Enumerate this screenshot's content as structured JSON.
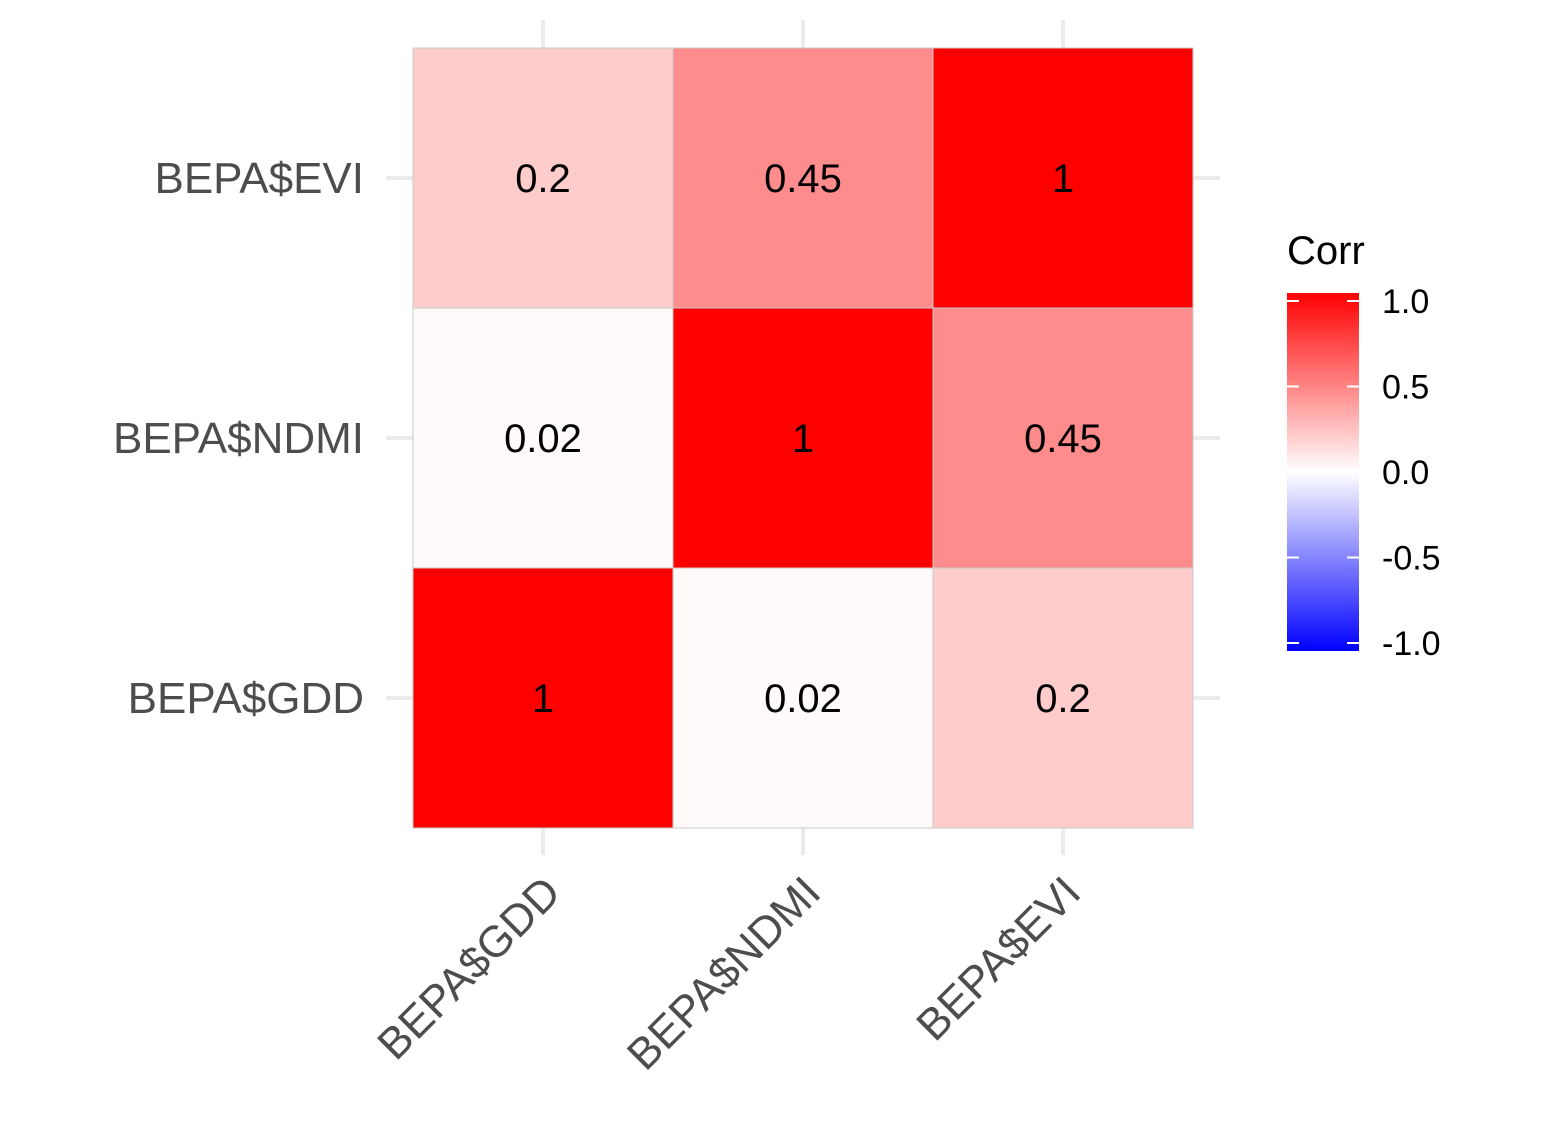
{
  "chart_data": {
    "type": "heatmap",
    "variables": [
      "BEPA$GDD",
      "BEPA$NDMI",
      "BEPA$EVI"
    ],
    "x_categories": [
      "BEPA$GDD",
      "BEPA$NDMI",
      "BEPA$EVI"
    ],
    "y_categories": [
      "BEPA$GDD",
      "BEPA$NDMI",
      "BEPA$EVI"
    ],
    "matrix": [
      [
        1,
        0.02,
        0.2
      ],
      [
        0.02,
        1,
        0.45
      ],
      [
        0.2,
        0.45,
        1
      ]
    ],
    "cell_labels": [
      [
        "1",
        "0.02",
        "0.2"
      ],
      [
        "0.02",
        "1",
        "0.45"
      ],
      [
        "0.2",
        "0.45",
        "1"
      ]
    ],
    "color_scale": {
      "low": "#0000FF",
      "mid": "#FFFFFF",
      "high": "#FF0000",
      "limits": [
        -1,
        1
      ]
    },
    "legend": {
      "title": "Corr",
      "position": "right",
      "breaks": [
        1.0,
        0.5,
        0.0,
        -0.5,
        -1.0
      ],
      "break_labels": [
        "1.0",
        "0.5",
        "0.0",
        "-0.5",
        "-1.0"
      ]
    },
    "grid": true
  }
}
